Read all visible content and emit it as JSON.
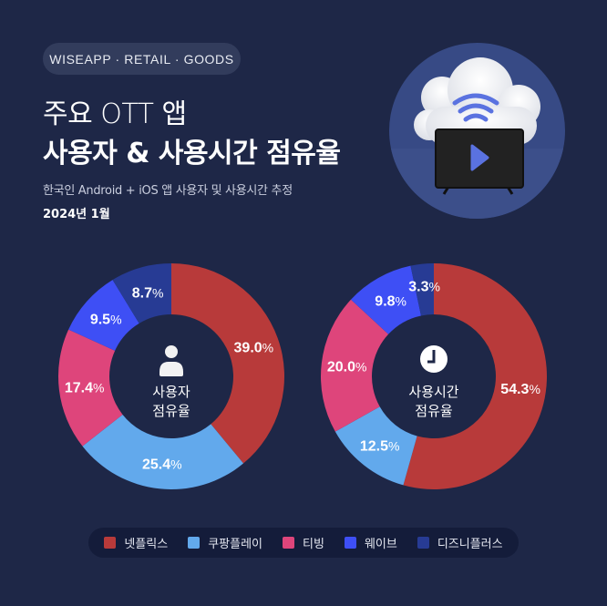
{
  "badge": "WISEAPP · RETAIL · GOODS",
  "title": {
    "line1": "주요 OTT 앱",
    "line2": "사용자 & 사용시간 점유율"
  },
  "subtitle": "한국인 Android + iOS 앱 사용자 및 사용시간 추정",
  "date": "2024년 1월",
  "hero_illustration": {
    "icons": [
      "cloud-icon",
      "wifi-icon",
      "tv-icon",
      "play-icon"
    ]
  },
  "colors": {
    "background": "#1e2747",
    "netflix": "#b83a3a",
    "coupang": "#62a9ec",
    "tving": "#de457b",
    "wavve": "#3e4ff5",
    "disney": "#273b94"
  },
  "donuts": [
    {
      "icon": "person-icon",
      "center_line1": "사용자",
      "center_line2": "점유율",
      "labels": [
        "39.0%",
        "25.4%",
        "17.4%",
        "9.5%",
        "8.7%"
      ]
    },
    {
      "icon": "clock-icon",
      "center_line1": "사용시간",
      "center_line2": "점유율",
      "labels": [
        "54.3%",
        "12.5%",
        "20.0%",
        "9.8%",
        "3.3%"
      ]
    }
  ],
  "legend": [
    {
      "label": "넷플릭스",
      "color": "#b83a3a"
    },
    {
      "label": "쿠팡플레이",
      "color": "#62a9ec"
    },
    {
      "label": "티빙",
      "color": "#de457b"
    },
    {
      "label": "웨이브",
      "color": "#3e4ff5"
    },
    {
      "label": "디즈니플러스",
      "color": "#273b94"
    }
  ],
  "chart_data": [
    {
      "type": "pie",
      "variant": "donut",
      "title": "사용자 점유율",
      "categories": [
        "넷플릭스",
        "쿠팡플레이",
        "티빙",
        "웨이브",
        "디즈니플러스"
      ],
      "values": [
        39.0,
        25.4,
        17.4,
        9.5,
        8.7
      ],
      "unit": "%",
      "start_angle": "top, clockwise",
      "legend_position": "bottom"
    },
    {
      "type": "pie",
      "variant": "donut",
      "title": "사용시간 점유율",
      "categories": [
        "넷플릭스",
        "쿠팡플레이",
        "티빙",
        "웨이브",
        "디즈니플러스"
      ],
      "values": [
        54.3,
        12.5,
        20.0,
        9.8,
        3.3
      ],
      "unit": "%",
      "start_angle": "top, clockwise",
      "legend_position": "bottom"
    }
  ]
}
